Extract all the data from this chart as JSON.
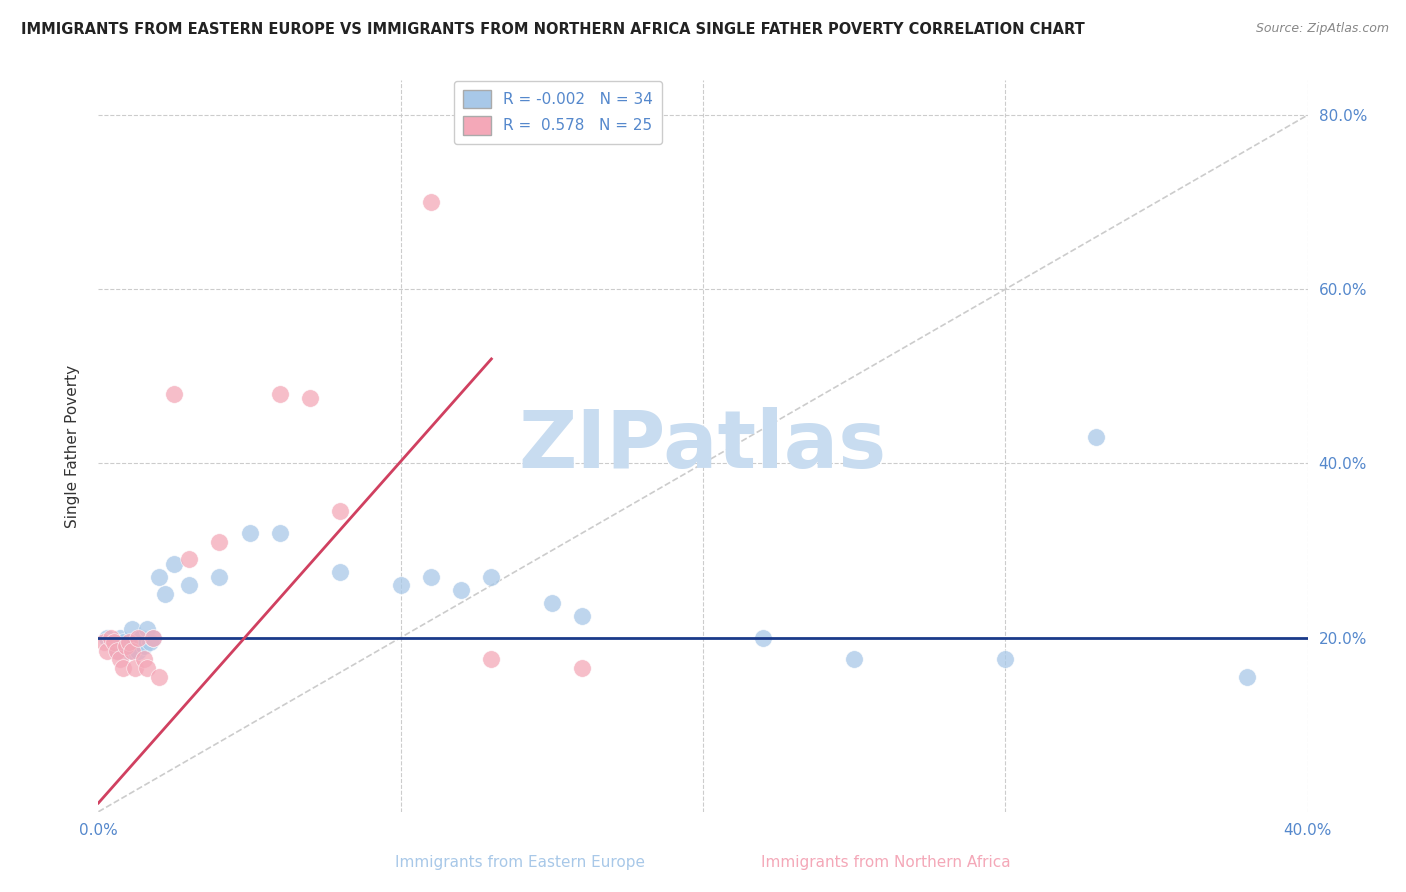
{
  "title": "IMMIGRANTS FROM EASTERN EUROPE VS IMMIGRANTS FROM NORTHERN AFRICA SINGLE FATHER POVERTY CORRELATION CHART",
  "source": "Source: ZipAtlas.com",
  "xlabel_bottom": [
    "Immigrants from Eastern Europe",
    "Immigrants from Northern Africa"
  ],
  "ylabel": "Single Father Poverty",
  "xlim": [
    0.0,
    0.4
  ],
  "ylim": [
    0.0,
    0.84
  ],
  "x_ticks": [
    0.0,
    0.1,
    0.2,
    0.3,
    0.4
  ],
  "y_ticks": [
    0.0,
    0.2,
    0.4,
    0.6,
    0.8
  ],
  "r_blue": -0.002,
  "n_blue": 34,
  "r_pink": 0.578,
  "n_pink": 25,
  "blue_color": "#A8C8E8",
  "pink_color": "#F4A8B8",
  "blue_line_color": "#1A3A8A",
  "pink_line_color": "#D04060",
  "diagonal_color": "#CCCCCC",
  "grid_color": "#CCCCCC",
  "tick_color": "#5588CC",
  "watermark_color": "#C8DCF0",
  "blue_scatter_x": [
    0.003,
    0.005,
    0.006,
    0.007,
    0.008,
    0.009,
    0.01,
    0.011,
    0.012,
    0.013,
    0.014,
    0.015,
    0.016,
    0.017,
    0.018,
    0.02,
    0.022,
    0.025,
    0.03,
    0.04,
    0.05,
    0.06,
    0.08,
    0.1,
    0.11,
    0.12,
    0.13,
    0.15,
    0.16,
    0.22,
    0.25,
    0.3,
    0.33,
    0.38
  ],
  "blue_scatter_y": [
    0.2,
    0.195,
    0.185,
    0.2,
    0.195,
    0.19,
    0.185,
    0.21,
    0.195,
    0.185,
    0.2,
    0.19,
    0.21,
    0.195,
    0.2,
    0.27,
    0.25,
    0.285,
    0.26,
    0.27,
    0.32,
    0.32,
    0.275,
    0.26,
    0.27,
    0.255,
    0.27,
    0.24,
    0.225,
    0.2,
    0.175,
    0.175,
    0.43,
    0.155
  ],
  "pink_scatter_x": [
    0.002,
    0.003,
    0.004,
    0.005,
    0.006,
    0.007,
    0.008,
    0.009,
    0.01,
    0.011,
    0.012,
    0.013,
    0.015,
    0.016,
    0.018,
    0.02,
    0.025,
    0.03,
    0.04,
    0.06,
    0.07,
    0.08,
    0.11,
    0.13,
    0.16
  ],
  "pink_scatter_y": [
    0.195,
    0.185,
    0.2,
    0.195,
    0.185,
    0.175,
    0.165,
    0.19,
    0.195,
    0.185,
    0.165,
    0.2,
    0.175,
    0.165,
    0.2,
    0.155,
    0.48,
    0.29,
    0.31,
    0.48,
    0.475,
    0.345,
    0.7,
    0.175,
    0.165
  ],
  "pink_line_x": [
    0.0,
    0.13
  ],
  "pink_line_y": [
    0.01,
    0.52
  ],
  "blue_line_y": 0.2
}
